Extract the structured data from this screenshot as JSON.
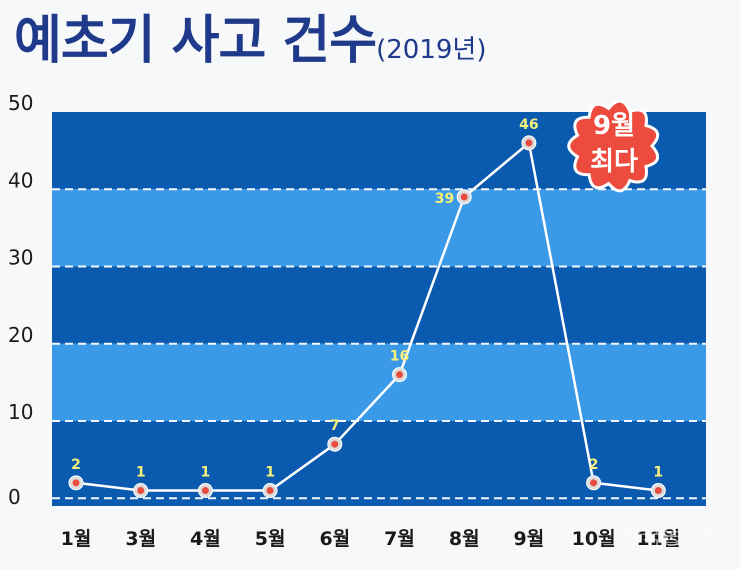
{
  "title": "예초기 사고 건수",
  "subtitle": "(2019년)",
  "badge": {
    "line1": "9월",
    "line2": "최다"
  },
  "watermark": "한국농어촌",
  "colors": {
    "band_dark": "#0a5bb0",
    "band_light": "#3a9ae8",
    "line": "#ffffff",
    "marker": "#e74c3c",
    "badge": "#ee4b3f",
    "title": "#1f3a8a"
  },
  "chart_data": {
    "type": "line",
    "title": "예초기 사고 건수(2019년)",
    "categories": [
      "1월",
      "3월",
      "4월",
      "5월",
      "6월",
      "7월",
      "8월",
      "9월",
      "10월",
      "11월"
    ],
    "values": [
      2,
      1,
      1,
      1,
      7,
      16,
      39,
      46,
      2,
      1
    ],
    "yticks": [
      0,
      10,
      20,
      30,
      40,
      50
    ],
    "ylim": [
      -1,
      50
    ],
    "xlabel": "",
    "ylabel": "",
    "annotation": "9월 최다"
  }
}
